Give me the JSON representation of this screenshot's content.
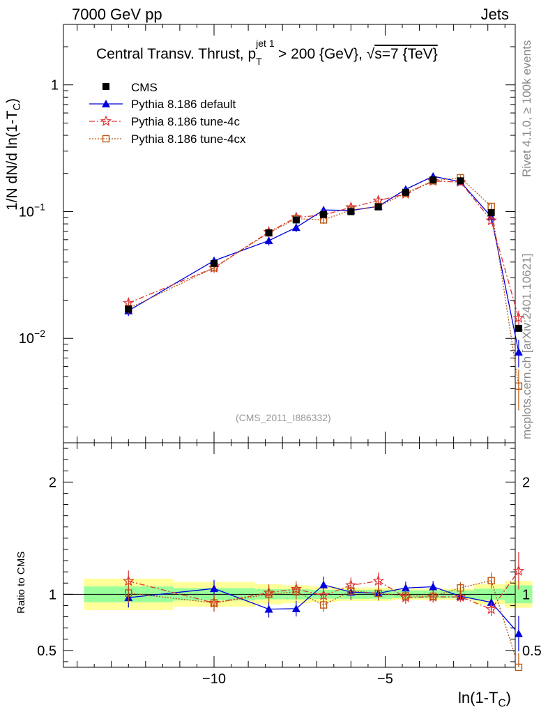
{
  "header": {
    "left": "7000 GeV pp",
    "right": "Jets",
    "side_rivet": "Rivet 4.1.0, ≥ 100k events",
    "side_mcplots": "mcplots.cern.ch [arXiv:2401.10621]"
  },
  "chart_data": {
    "type": "line",
    "title": "Central Transv. Thrust, p_T^{jet 1} > 200 {GeV}, √s=7 {TeV}",
    "title_parts": {
      "prefix": "Central Transv. Thrust, p",
      "sub": "T",
      "sup": "jet 1",
      "middle": " > 200 {GeV}, ",
      "root": "√",
      "suffix": "s=7 {TeV}"
    },
    "analysis_id": "(CMS_2011_I886332)",
    "xlabel": "ln(1-T_C)",
    "xlabel_parts": {
      "main": "ln(1-T",
      "sub": "C",
      "close": ")"
    },
    "ylabel": "1/N   dN/d ln(1-T_C)",
    "ylabel_parts": {
      "main": "1/N    dN/d ln(1-T",
      "sub": "C",
      "close": ")"
    },
    "ratio_ylabel": "Ratio to CMS",
    "xlim": [
      -14.4,
      -1.2
    ],
    "ylim_main": [
      0.0015,
      3.0
    ],
    "ylim_ratio": [
      0.35,
      2.35
    ],
    "y_scale_main": "log",
    "x_ticks": [
      -10,
      -5
    ],
    "x_tick_labels": [
      "−10",
      "−5"
    ],
    "y_ticks_main": [
      {
        "value": 1,
        "label": "1",
        "exp": ""
      },
      {
        "value": 0.1,
        "label": "10",
        "exp": "−1"
      },
      {
        "value": 0.01,
        "label": "10",
        "exp": "−2"
      }
    ],
    "y_ticks_ratio": [
      {
        "value": 2,
        "label": "2"
      },
      {
        "value": 1,
        "label": "1"
      },
      {
        "value": 0.5,
        "label": "0.5"
      }
    ],
    "x": [
      -12.5,
      -10.0,
      -8.4,
      -7.6,
      -6.8,
      -6.0,
      -5.2,
      -4.4,
      -3.6,
      -2.8,
      -1.9,
      -1.1
    ],
    "bin_edges": [
      -13.8,
      -11.2,
      -8.8,
      -8.0,
      -7.2,
      -6.4,
      -5.6,
      -4.8,
      -4.0,
      -3.2,
      -2.4,
      -1.5,
      -0.7
    ],
    "reference": {
      "name": "CMS",
      "values": [
        0.017,
        0.039,
        0.068,
        0.086,
        0.095,
        0.1,
        0.109,
        0.142,
        0.178,
        0.175,
        0.098,
        0.012
      ],
      "band_inner": [
        0.07,
        0.055,
        0.045,
        0.045,
        0.04,
        0.04,
        0.04,
        0.035,
        0.035,
        0.035,
        0.05,
        0.08
      ],
      "band_outer": [
        0.14,
        0.11,
        0.09,
        0.08,
        0.07,
        0.06,
        0.06,
        0.05,
        0.05,
        0.05,
        0.09,
        0.12
      ]
    },
    "series": [
      {
        "name": "Pythia 8.186 default",
        "color": "#0000dd",
        "marker": "triangle",
        "line": "solid",
        "values": [
          0.0165,
          0.041,
          0.059,
          0.075,
          0.103,
          0.102,
          0.11,
          0.15,
          0.19,
          0.172,
          0.091,
          0.0078
        ],
        "errors": [
          0.0015,
          0.003,
          0.005,
          0.006,
          0.007,
          0.007,
          0.007,
          0.008,
          0.009,
          0.008,
          0.007,
          0.0019
        ]
      },
      {
        "name": "Pythia 8.186 tune-4c",
        "color": "#dd3333",
        "marker": "star",
        "line": "dashdot",
        "values": [
          0.019,
          0.036,
          0.069,
          0.09,
          0.094,
          0.108,
          0.122,
          0.138,
          0.174,
          0.171,
          0.085,
          0.0145
        ],
        "errors": [
          0.0016,
          0.003,
          0.005,
          0.006,
          0.006,
          0.007,
          0.008,
          0.008,
          0.009,
          0.008,
          0.006,
          0.002
        ]
      },
      {
        "name": "Pythia 8.186 tune-4cx",
        "color": "#bb5511",
        "marker": "square-open",
        "line": "dotted",
        "values": [
          0.0172,
          0.036,
          0.068,
          0.088,
          0.086,
          0.103,
          0.11,
          0.14,
          0.175,
          0.185,
          0.11,
          0.0042
        ],
        "errors": [
          0.0015,
          0.003,
          0.005,
          0.006,
          0.006,
          0.007,
          0.007,
          0.008,
          0.009,
          0.009,
          0.007,
          0.0015
        ]
      }
    ],
    "legend_position": "top-left"
  }
}
